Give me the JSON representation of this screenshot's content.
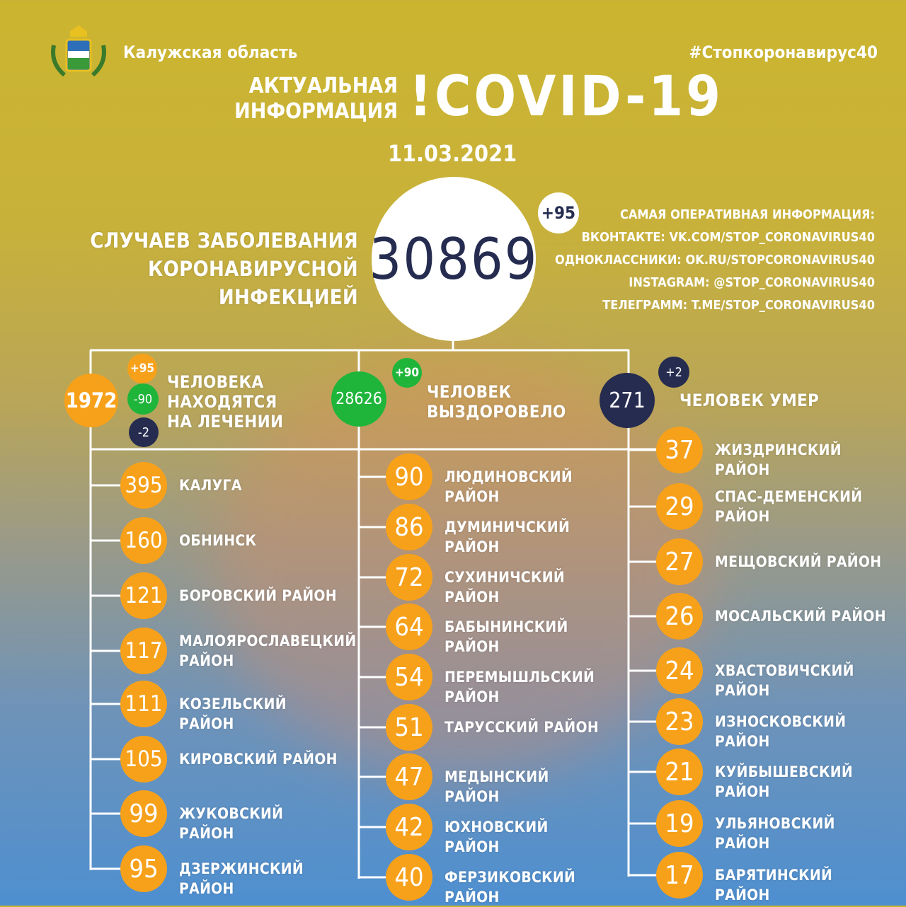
{
  "header": {
    "region": "Калужская область",
    "hashtag": "#Стопкоронавирус40",
    "title_line1": "АКТУАЛЬНАЯ",
    "title_line2": "ИНФОРМАЦИЯ",
    "title_big": "!COVID-19",
    "date": "11.03.2021",
    "coat_of_arms_icon": "coat-of-arms"
  },
  "total": {
    "label_line1": "СЛУЧАЕВ ЗАБОЛЕВАНИЯ",
    "label_line2": "КОРОНАВИРУСНОЙ ИНФЕКЦИЕЙ",
    "value": "30869",
    "delta": "+95"
  },
  "info": {
    "heading": "САМАЯ ОПЕРАТИВНАЯ ИНФОРМАЦИЯ:",
    "links": [
      "ВКОНТАКТЕ: VK.COM/STOP_CORONAVIRUS40",
      "ОДНОКЛАССНИКИ: OK.RU/STOPCORONAVIRUS40",
      "INSTAGRAM: @STOP_CORONAVIRUS40",
      "ТЕЛЕГРАММ: T.ME/STOP_CORONAVIRUS40"
    ]
  },
  "stats": {
    "treatment": {
      "value": "1972",
      "delta_new": "+95",
      "delta_recovered": "-90",
      "delta_died": "-2",
      "label_line1": "ЧЕЛОВЕКА",
      "label_line2": "НАХОДЯТСЯ",
      "label_line3": "НА ЛЕЧЕНИИ"
    },
    "recovered": {
      "value": "28626",
      "delta": "+90",
      "label_line1": "ЧЕЛОВЕК",
      "label_line2": "ВЫЗДОРОВЕЛО"
    },
    "died": {
      "value": "271",
      "delta": "+2",
      "label": "ЧЕЛОВЕК УМЕР"
    }
  },
  "colors": {
    "orange": "#f7a11a",
    "green": "#1fb53b",
    "navy": "#252c50"
  },
  "districts": {
    "left": [
      {
        "value": "395",
        "name": "КАЛУГА"
      },
      {
        "value": "160",
        "name": "ОБНИНСК"
      },
      {
        "value": "121",
        "name": "БОРОВСКИЙ РАЙОН"
      },
      {
        "value": "117",
        "name": "МАЛОЯРОСЛАВЕЦКИЙ РАЙОН"
      },
      {
        "value": "111",
        "name": "КОЗЕЛЬСКИЙ РАЙОН"
      },
      {
        "value": "105",
        "name": "КИРОВСКИЙ РАЙОН"
      },
      {
        "value": "99",
        "name": "ЖУКОВСКИЙ РАЙОН"
      },
      {
        "value": "95",
        "name": "ДЗЕРЖИНСКИЙ РАЙОН"
      }
    ],
    "middle": [
      {
        "value": "90",
        "name": "ЛЮДИНОВСКИЙ РАЙОН"
      },
      {
        "value": "86",
        "name": "ДУМИНИЧСКИЙ РАЙОН"
      },
      {
        "value": "72",
        "name": "СУХИНИЧСКИЙ РАЙОН"
      },
      {
        "value": "64",
        "name": "БАБЫНИНСКИЙ РАЙОН"
      },
      {
        "value": "54",
        "name": "ПЕРЕМЫШЛЬСКИЙ РАЙОН"
      },
      {
        "value": "51",
        "name": "ТАРУССКИЙ РАЙОН"
      },
      {
        "value": "47",
        "name": "МЕДЫНСКИЙ РАЙОН"
      },
      {
        "value": "42",
        "name": "ЮХНОВСКИЙ РАЙОН"
      },
      {
        "value": "40",
        "name": "ФЕРЗИКОВСКИЙ РАЙОН"
      }
    ],
    "right": [
      {
        "value": "37",
        "name": "ЖИЗДРИНСКИЙ РАЙОН"
      },
      {
        "value": "29",
        "name": "СПАС-ДЕМЕНСКИЙ РАЙОН"
      },
      {
        "value": "27",
        "name": "МЕЩОВСКИЙ РАЙОН"
      },
      {
        "value": "26",
        "name": "МОСАЛЬСКИЙ РАЙОН"
      },
      {
        "value": "24",
        "name": "ХВАСТОВИЧСКИЙ РАЙОН"
      },
      {
        "value": "23",
        "name": "ИЗНОСКОВСКИЙ РАЙОН"
      },
      {
        "value": "21",
        "name": "КУЙБЫШЕВСКИЙ РАЙОН"
      },
      {
        "value": "19",
        "name": "УЛЬЯНОВСКИЙ РАЙОН"
      },
      {
        "value": "17",
        "name": "БАРЯТИНСКИЙ РАЙОН"
      }
    ]
  }
}
